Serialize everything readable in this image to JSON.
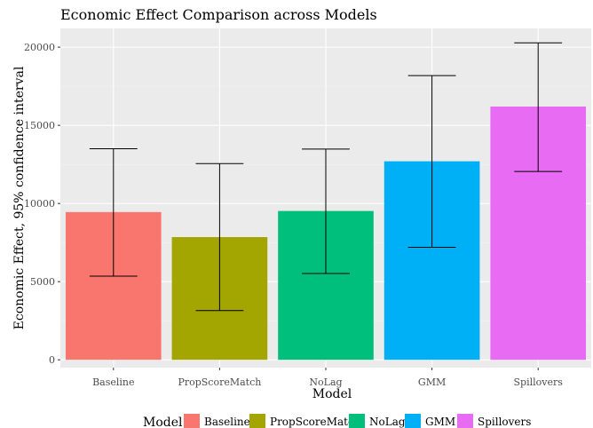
{
  "chart_data": {
    "type": "bar",
    "title": "Economic Effect Comparison across Models",
    "xlabel": "Model",
    "ylabel": "Economic Effect, 95% confidence interval",
    "categories": [
      "Baseline",
      "PropScoreMatch",
      "NoLag",
      "GMM",
      "Spillovers"
    ],
    "values": [
      9450,
      7850,
      9520,
      12700,
      16200
    ],
    "error_low": [
      5350,
      3150,
      5520,
      7200,
      12050
    ],
    "error_high": [
      13500,
      12550,
      13480,
      18180,
      20280
    ],
    "colors": [
      "#F8766D",
      "#A3A500",
      "#00BF7D",
      "#00B0F6",
      "#E76BF3"
    ],
    "ylim": [
      -500,
      21200
    ],
    "yticks": [
      0,
      5000,
      10000,
      15000,
      20000
    ],
    "ytick_labels": [
      "0",
      "5000",
      "10000",
      "15000",
      "20000"
    ],
    "grid": true,
    "background": "#EBEBEB",
    "legend": {
      "title": "Model",
      "position": "bottom",
      "entries": [
        "Baseline",
        "PropScoreMatch",
        "NoLag",
        "GMM",
        "Spillovers"
      ]
    }
  }
}
